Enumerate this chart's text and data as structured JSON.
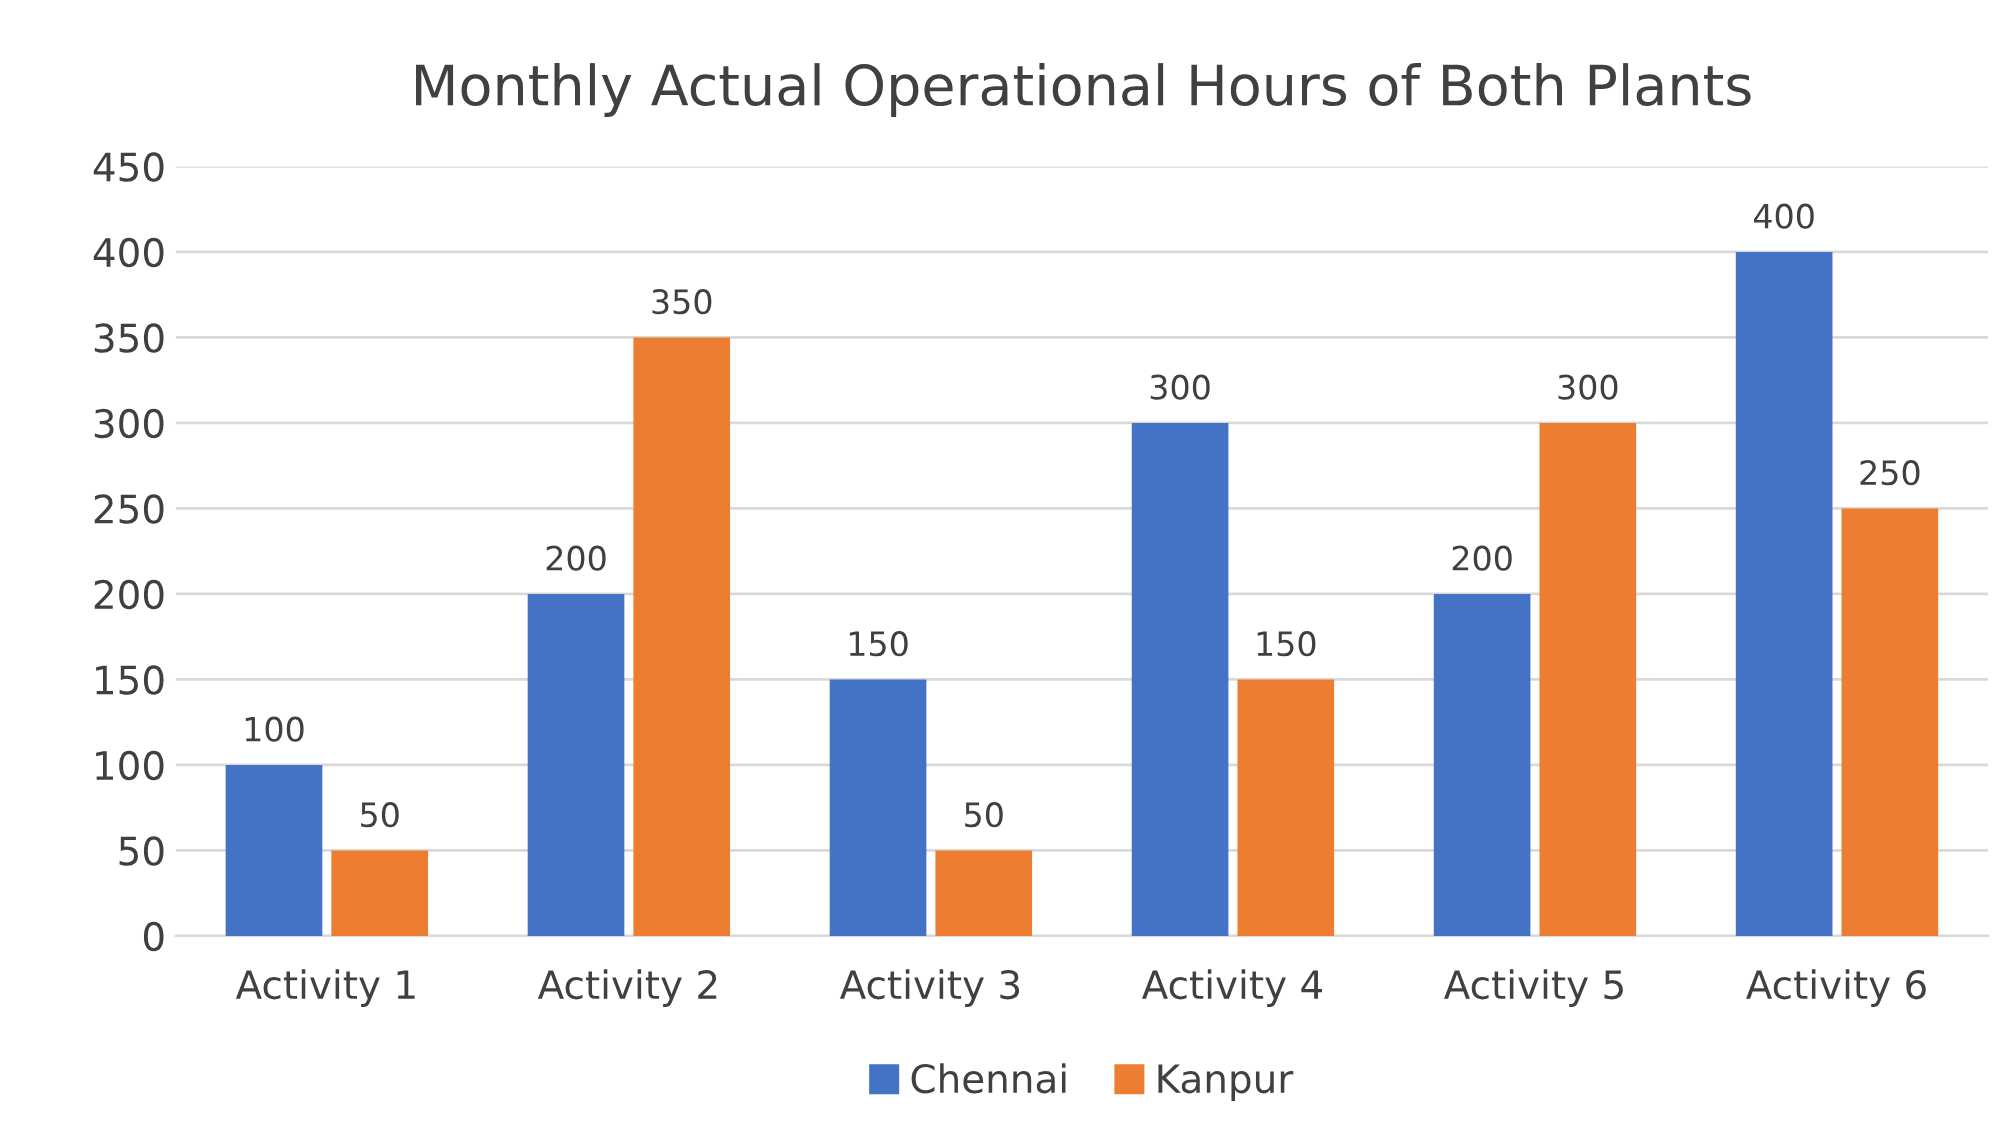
{
  "chart_data": {
    "type": "bar",
    "title": "Monthly Actual Operational Hours of Both Plants",
    "categories": [
      "Activity 1",
      "Activity 2",
      "Activity 3",
      "Activity 4",
      "Activity 5",
      "Activity 6"
    ],
    "series": [
      {
        "name": "Chennai",
        "color": "#4472c4",
        "values": [
          100,
          200,
          150,
          300,
          200,
          400
        ]
      },
      {
        "name": "Kanpur",
        "color": "#ed7d31",
        "values": [
          50,
          350,
          50,
          150,
          300,
          250
        ]
      }
    ],
    "ylim": [
      0,
      450
    ],
    "yticks": [
      0,
      50,
      100,
      150,
      200,
      250,
      300,
      350,
      400,
      450
    ],
    "grid": "y",
    "legend": "bottom",
    "data_labels": true
  }
}
